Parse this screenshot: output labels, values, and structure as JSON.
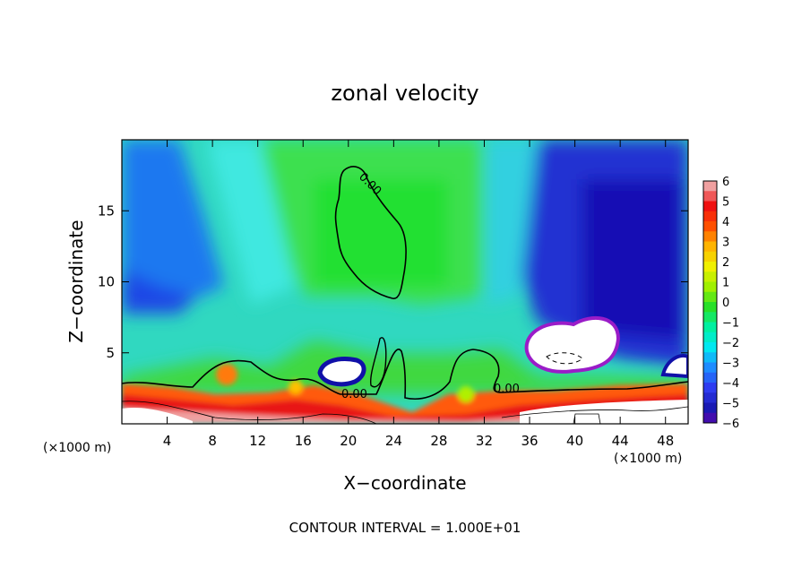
{
  "chart_data": {
    "type": "heatmap",
    "title": "zonal velocity",
    "xlabel": "X−coordinate",
    "ylabel": "Z−coordinate",
    "x_unit_left": "(×1000 m)",
    "x_unit_right": "(×1000 m)",
    "xlim": [
      0,
      50
    ],
    "ylim": [
      0,
      20
    ],
    "x_ticks": [
      4,
      8,
      12,
      16,
      20,
      24,
      28,
      32,
      36,
      40,
      44,
      48
    ],
    "y_ticks": [
      5,
      10,
      15
    ],
    "colorbar": {
      "min": -6,
      "max": 6,
      "tick_labels": [
        "6",
        "5",
        "4",
        "3",
        "2",
        "1",
        "0",
        "−1",
        "−2",
        "−3",
        "−4",
        "−5",
        "−6"
      ]
    },
    "contour_labels": [
      "0.00",
      "0.00",
      "0.00"
    ],
    "footer": "CONTOUR INTERVAL = 1.000E+01",
    "colors": {
      "neg6": "#6a00a8",
      "neg5": "#1a1ab4",
      "neg4": "#2e3cf0",
      "neg3": "#1e8cff",
      "neg2": "#00e8f0",
      "neg1": "#00f0a0",
      "zero": "#28e028",
      "pos1": "#a0f000",
      "pos2": "#f0f000",
      "pos3": "#ffb400",
      "pos4": "#ff5000",
      "pos5": "#f01010",
      "pos6": "#f0a0a0",
      "saturated": "#ffffff"
    }
  }
}
